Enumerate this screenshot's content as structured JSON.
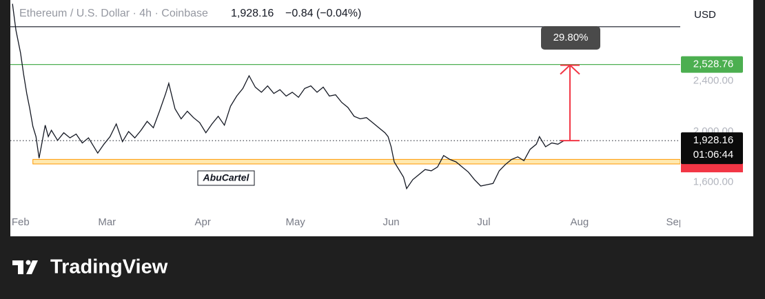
{
  "chart_data": {
    "type": "line",
    "title": "Ethereum / U.S. Dollar · 4h · Coinbase",
    "header_price": "1,928.16",
    "header_change": "−0.84 (−0.04%)",
    "currency": "USD",
    "countdown": "01:06:44",
    "last_price": {
      "value": 1928.16,
      "label": "1,928.16"
    },
    "target": {
      "value": 2528.76,
      "label": "2,528.76"
    },
    "resistance_line": 2827,
    "zone": [
      1744,
      1780
    ],
    "measure": {
      "value": 29.8,
      "label": "29.80%"
    },
    "watermark": "AbuCartel",
    "brand": "TradingView",
    "xlim": [
      -3.3,
      213.6
    ],
    "ylim": [
      1173,
      3038
    ],
    "xticks": [
      {
        "value": 0,
        "label": "Feb"
      },
      {
        "value": 28,
        "label": "Mar"
      },
      {
        "value": 59,
        "label": "Apr"
      },
      {
        "value": 89,
        "label": "May"
      },
      {
        "value": 120,
        "label": "Jun"
      },
      {
        "value": 150,
        "label": "Jul"
      },
      {
        "value": 181,
        "label": "Aug"
      },
      {
        "value": 212,
        "label": "Sep"
      }
    ],
    "yticks": [
      {
        "value": 1600,
        "label": "1,600.00"
      },
      {
        "value": 2000,
        "label": "2,000.00"
      },
      {
        "value": 2400,
        "label": "2,400.00"
      }
    ],
    "series": [
      {
        "name": "ETHUSD",
        "color": "#131722",
        "x": [
          -2.6,
          -1.5,
          0,
          1,
          2,
          3,
          4,
          5,
          6,
          7,
          8,
          9,
          10,
          12,
          14,
          16,
          18,
          20,
          22,
          24,
          25,
          27,
          29,
          31,
          33,
          35,
          37,
          39,
          41,
          43,
          45,
          47,
          48,
          50,
          52,
          54,
          56,
          58,
          60,
          62,
          64,
          66,
          68,
          70,
          72,
          74,
          76,
          78,
          80,
          82,
          84,
          86,
          88,
          90,
          92,
          94,
          96,
          98,
          100,
          102,
          104,
          106,
          108,
          110,
          112,
          114,
          116,
          118,
          119,
          120,
          121,
          122,
          124,
          125,
          127,
          129,
          131,
          133,
          135,
          137,
          139,
          141,
          143,
          145,
          147,
          149,
          151,
          153,
          155,
          157,
          159,
          161,
          163,
          165,
          167,
          168,
          170,
          172,
          174,
          176
        ],
        "values": [
          3008,
          2800,
          2620,
          2450,
          2300,
          2180,
          2040,
          1960,
          1790,
          1920,
          2050,
          1960,
          2010,
          1930,
          1990,
          1950,
          1980,
          1910,
          1950,
          1870,
          1830,
          1900,
          1960,
          2060,
          1920,
          2000,
          1950,
          2010,
          2080,
          2030,
          2160,
          2300,
          2380,
          2180,
          2100,
          2160,
          2110,
          2070,
          1990,
          2060,
          2120,
          2050,
          2200,
          2280,
          2340,
          2440,
          2350,
          2310,
          2360,
          2300,
          2330,
          2280,
          2310,
          2270,
          2340,
          2360,
          2310,
          2350,
          2280,
          2290,
          2230,
          2190,
          2120,
          2100,
          2110,
          2070,
          2030,
          1990,
          1960,
          1880,
          1760,
          1720,
          1640,
          1550,
          1620,
          1660,
          1700,
          1690,
          1720,
          1810,
          1780,
          1760,
          1720,
          1680,
          1620,
          1570,
          1580,
          1590,
          1690,
          1740,
          1780,
          1800,
          1770,
          1860,
          1900,
          1960,
          1880,
          1910,
          1900,
          1928.16
        ]
      }
    ]
  }
}
